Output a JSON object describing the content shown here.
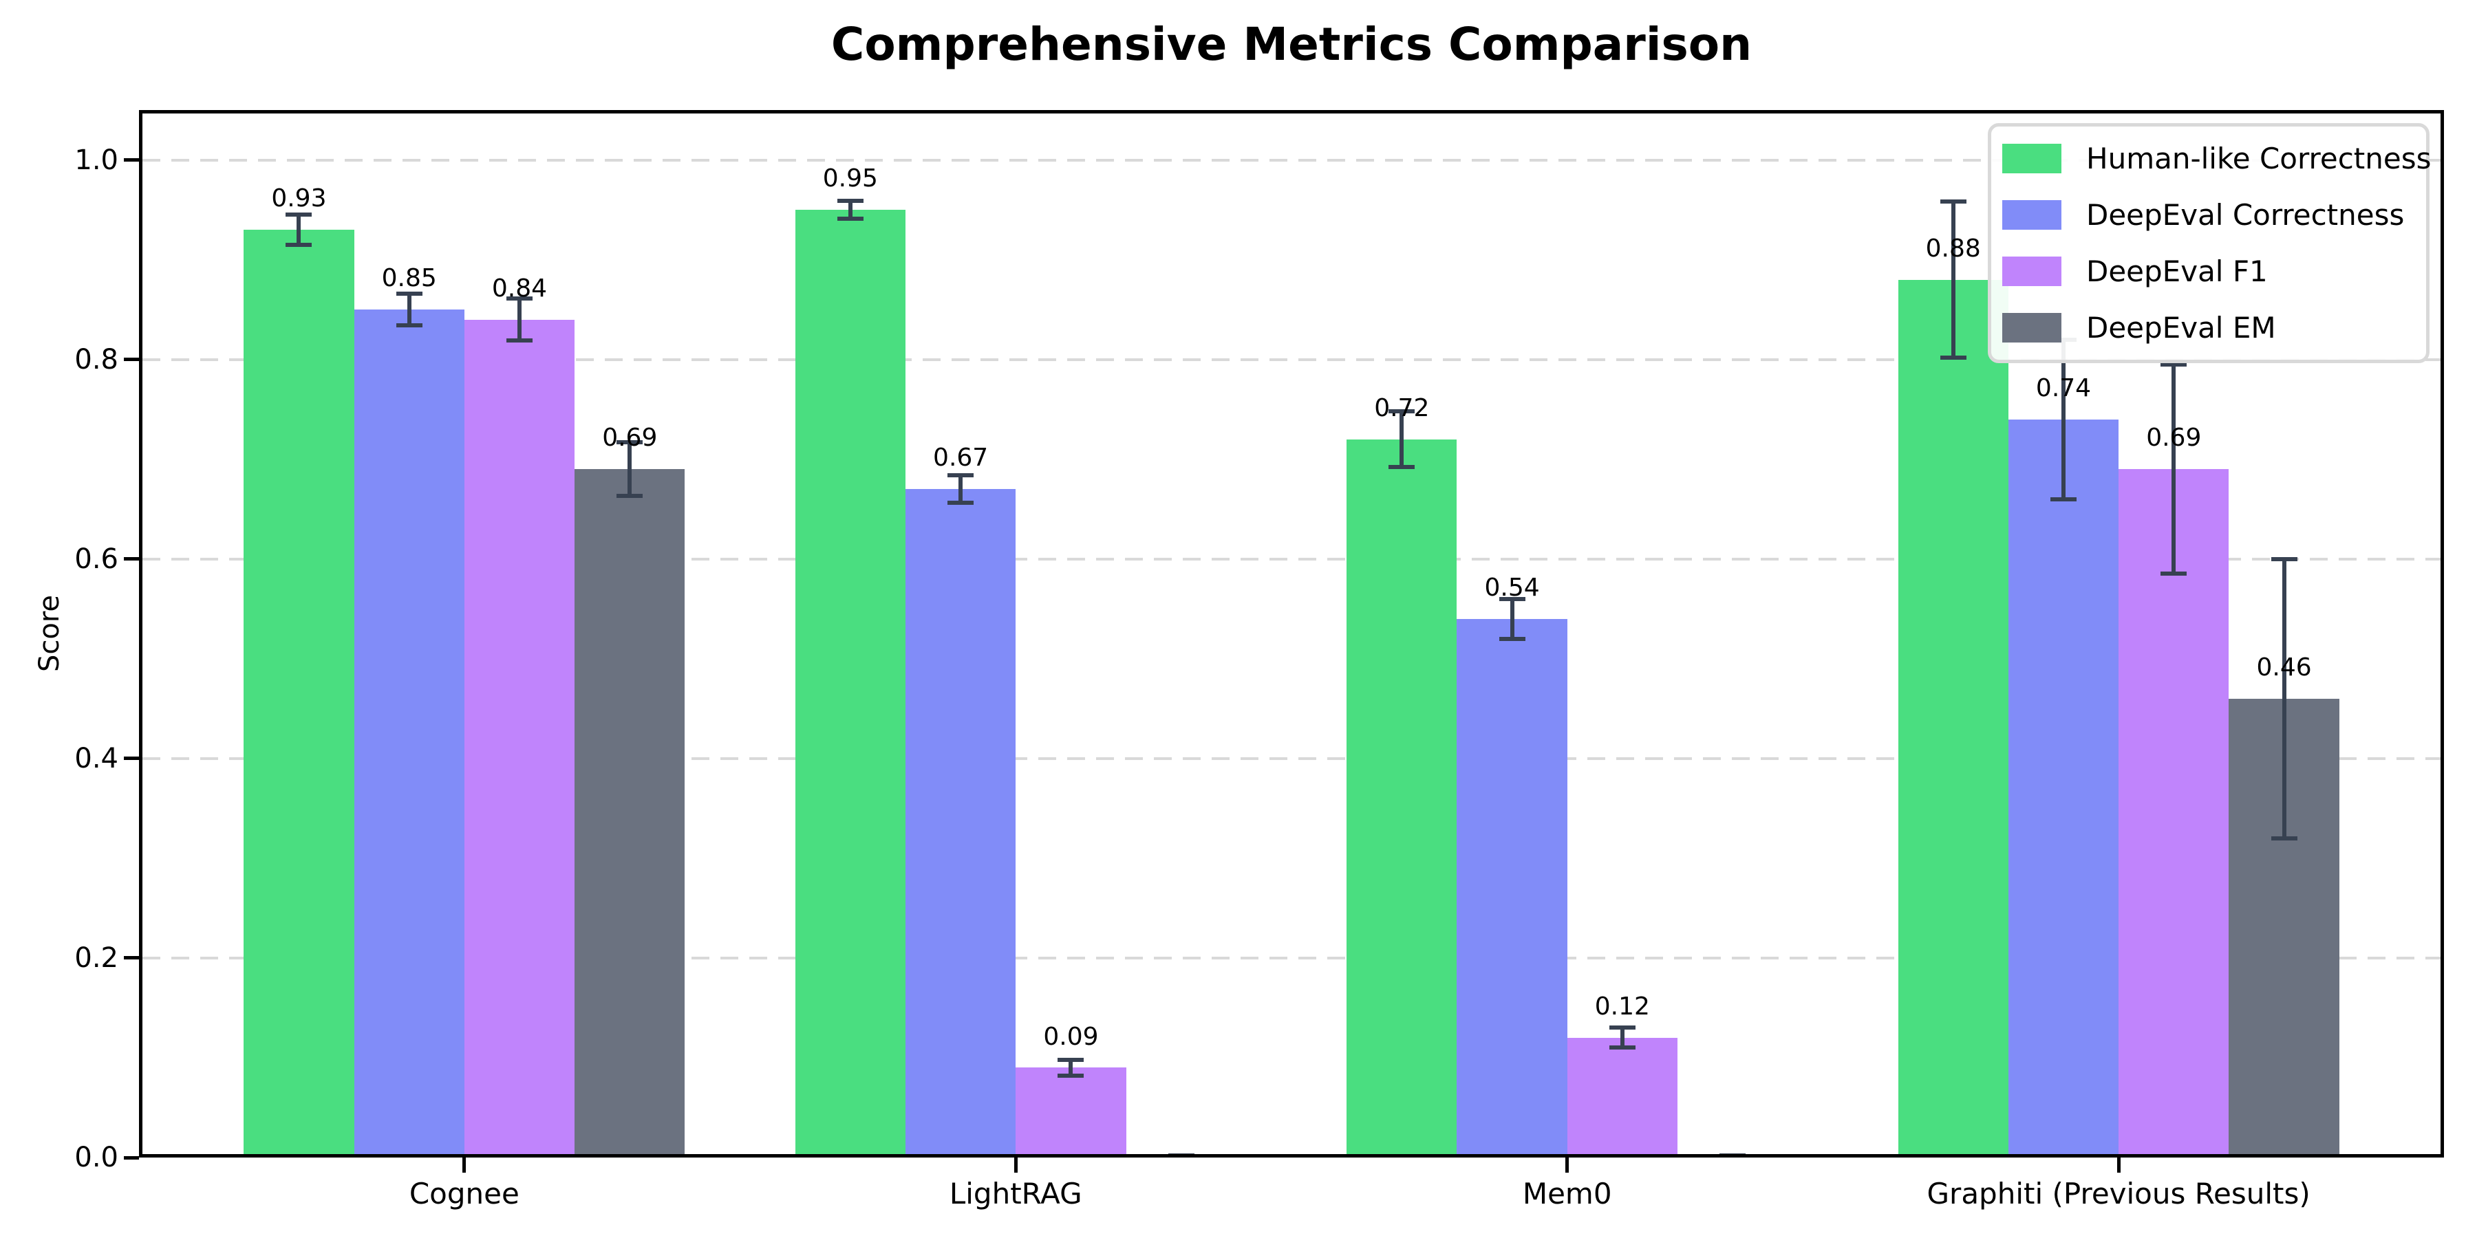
{
  "figure": {
    "title": "Comprehensive Metrics Comparison",
    "background": "#ffffff"
  },
  "chart_data": {
    "type": "bar",
    "title": "Comprehensive Metrics Comparison",
    "xlabel": "",
    "ylabel": "Score",
    "categories": [
      "Cognee",
      "LightRAG",
      "Mem0",
      "Graphiti (Previous Results)"
    ],
    "series": [
      {
        "name": "Human-like Correctness",
        "color": "#4ade80",
        "values": [
          0.93,
          0.95,
          0.72,
          0.88
        ],
        "errors": [
          0.015,
          0.009,
          0.028,
          0.078
        ],
        "labels": [
          "0.93",
          "0.95",
          "0.72",
          "0.88"
        ]
      },
      {
        "name": "DeepEval Correctness",
        "color": "#818cf8",
        "values": [
          0.85,
          0.67,
          0.54,
          0.74
        ],
        "errors": [
          0.016,
          0.014,
          0.02,
          0.08
        ],
        "labels": [
          "0.85",
          "0.67",
          "0.54",
          "0.74"
        ]
      },
      {
        "name": "DeepEval F1",
        "color": "#c084fc",
        "values": [
          0.84,
          0.09,
          0.12,
          0.69
        ],
        "errors": [
          0.021,
          0.008,
          0.01,
          0.105
        ],
        "labels": [
          "0.84",
          "0.09",
          "0.12",
          "0.69"
        ]
      },
      {
        "name": "DeepEval EM",
        "color": "#6b7280",
        "values": [
          0.69,
          0.0,
          0.0,
          0.46
        ],
        "errors": [
          0.027,
          0.002,
          0.002,
          0.14
        ],
        "labels": [
          "0.69",
          "",
          "",
          "0.46"
        ]
      }
    ],
    "ytick_values": [
      0.0,
      0.2,
      0.4,
      0.6,
      0.8,
      1.0
    ],
    "ytick_labels": [
      "0.0",
      "0.2",
      "0.4",
      "0.6",
      "0.8",
      "1.0"
    ],
    "ylim": [
      0,
      1.05
    ],
    "grid": {
      "axis": "y",
      "style": "dashed",
      "color": "#d9d9d9"
    },
    "legend_position": "upper right",
    "error_bar_color": "#374151",
    "spine_color": "#000000",
    "zero_bars_unlabeled": true
  }
}
